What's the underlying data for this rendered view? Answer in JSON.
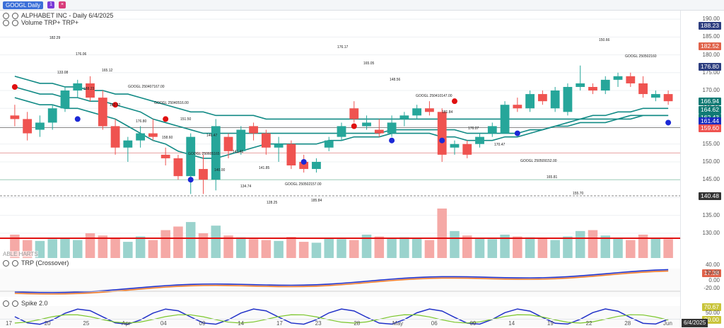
{
  "window": {
    "symbol_tab": "GOOGL Daily",
    "title": "ALPHABET INC - Daily 6/4/2025",
    "volume_label": "Volume  TRP+ TRP+",
    "watermark": "ABLE HARTS",
    "trp_label": "TRP (Crossover)",
    "spike_label": "Spike 2.0"
  },
  "colors": {
    "up": "#26a69a",
    "down": "#ef5350",
    "ma": "#118a85",
    "blue_dot": "#1b28d6",
    "red_dot": "#e01010",
    "magenta": "#e81ce8",
    "green_line": "#1f8c1f"
  },
  "price_scale": {
    "labels": [
      "190.00",
      "185.00",
      "180.00",
      "175.00",
      "170.00",
      "165.00",
      "160.00",
      "155.00",
      "150.00",
      "145.00",
      "140.00",
      "135.00",
      "130.00"
    ],
    "tags": [
      {
        "text": "188.23",
        "color": "#2d3e80"
      },
      {
        "text": "182.52",
        "color": "#e0624a"
      },
      {
        "text": "176.80",
        "color": "#2d3e80"
      },
      {
        "text": "166.94",
        "color": "#0f7a74"
      },
      {
        "text": "164.62",
        "color": "#0f7a74"
      },
      {
        "text": "162.43",
        "color": "#0f7a74"
      },
      {
        "text": "161.44",
        "color": "#1a2cc0"
      },
      {
        "text": "159.60",
        "color": "#ef5350"
      },
      {
        "text": "140.48",
        "color": "#333333"
      }
    ]
  },
  "trp_scale": {
    "labels": [
      "40.00",
      "20.00",
      "0.00",
      "-20.00"
    ],
    "tag": "17.38"
  },
  "spike_scale": {
    "labels": [
      "50.00"
    ],
    "tags": [
      "70.67",
      "20.00"
    ]
  },
  "x_axis": {
    "labels": [
      "17",
      "20",
      "25",
      "Apr",
      "04",
      "09",
      "14",
      "17",
      "23",
      "28",
      "May",
      "06",
      "09",
      "14",
      "19",
      "22",
      "28",
      "Jun"
    ],
    "current_date": "6/4/2025"
  },
  "annotations": [
    "182.29",
    "176.06",
    "165.12",
    "GOOGL 250407167.00",
    "GOOGL 25040516.00",
    "151.50",
    "146.47",
    "141.46",
    "141.85",
    "GOOGL 250502157.00",
    "185.84",
    "176.17",
    "165.05",
    "148.56",
    "GOOGL 250410147.00",
    "181.84",
    "176.07",
    "170.47",
    "GOOGL 250509152.00",
    "165.81",
    "155.70",
    "150.66",
    "GOOGL 250502160",
    "133.08",
    "188.23",
    "182.52",
    "176.80",
    "158.60",
    "GOOGL 250605165",
    "140.00",
    "134.74",
    "128.25"
  ],
  "chart_data": {
    "type": "candlestick",
    "ohlc": [
      {
        "o": 163,
        "h": 166,
        "l": 160,
        "c": 162
      },
      {
        "o": 162,
        "h": 164,
        "l": 156,
        "c": 158
      },
      {
        "o": 159,
        "h": 163,
        "l": 157,
        "c": 161
      },
      {
        "o": 161,
        "h": 166,
        "l": 159,
        "c": 165
      },
      {
        "o": 165,
        "h": 171,
        "l": 164,
        "c": 170
      },
      {
        "o": 170,
        "h": 173,
        "l": 168,
        "c": 172
      },
      {
        "o": 172,
        "h": 174,
        "l": 167,
        "c": 168
      },
      {
        "o": 168,
        "h": 170,
        "l": 159,
        "c": 160
      },
      {
        "o": 160,
        "h": 162,
        "l": 152,
        "c": 154
      },
      {
        "o": 154,
        "h": 157,
        "l": 150,
        "c": 156
      },
      {
        "o": 156,
        "h": 160,
        "l": 154,
        "c": 158
      },
      {
        "o": 158,
        "h": 162,
        "l": 156,
        "c": 157
      },
      {
        "o": 152,
        "h": 154,
        "l": 149,
        "c": 151
      },
      {
        "o": 151,
        "h": 152,
        "l": 145,
        "c": 146
      },
      {
        "o": 146,
        "h": 158,
        "l": 141,
        "c": 157
      },
      {
        "o": 148,
        "h": 152,
        "l": 141,
        "c": 145
      },
      {
        "o": 145,
        "h": 162,
        "l": 142,
        "c": 160
      },
      {
        "o": 157,
        "h": 158,
        "l": 151,
        "c": 153
      },
      {
        "o": 153,
        "h": 160,
        "l": 152,
        "c": 159
      },
      {
        "o": 160,
        "h": 161,
        "l": 156,
        "c": 158
      },
      {
        "o": 158,
        "h": 159,
        "l": 152,
        "c": 154
      },
      {
        "o": 154,
        "h": 157,
        "l": 150,
        "c": 155
      },
      {
        "o": 155,
        "h": 156,
        "l": 148,
        "c": 149
      },
      {
        "o": 150,
        "h": 152,
        "l": 147,
        "c": 148
      },
      {
        "o": 148,
        "h": 151,
        "l": 147,
        "c": 150
      },
      {
        "o": 154,
        "h": 157,
        "l": 153,
        "c": 156
      },
      {
        "o": 157,
        "h": 161,
        "l": 156,
        "c": 160
      },
      {
        "o": 165,
        "h": 167,
        "l": 161,
        "c": 162
      },
      {
        "o": 160,
        "h": 163,
        "l": 159,
        "c": 161
      },
      {
        "o": 159,
        "h": 162,
        "l": 157,
        "c": 158
      },
      {
        "o": 158,
        "h": 163,
        "l": 157,
        "c": 161
      },
      {
        "o": 162,
        "h": 164,
        "l": 160,
        "c": 163
      },
      {
        "o": 163,
        "h": 166,
        "l": 162,
        "c": 165
      },
      {
        "o": 165,
        "h": 167,
        "l": 163,
        "c": 164
      },
      {
        "o": 164,
        "h": 165,
        "l": 150,
        "c": 152
      },
      {
        "o": 154,
        "h": 156,
        "l": 152,
        "c": 155
      },
      {
        "o": 155,
        "h": 156,
        "l": 151,
        "c": 152
      },
      {
        "o": 155,
        "h": 158,
        "l": 154,
        "c": 157
      },
      {
        "o": 158,
        "h": 161,
        "l": 157,
        "c": 160
      },
      {
        "o": 158,
        "h": 167,
        "l": 158,
        "c": 166
      },
      {
        "o": 166,
        "h": 168,
        "l": 164,
        "c": 165
      },
      {
        "o": 165,
        "h": 170,
        "l": 164,
        "c": 169
      },
      {
        "o": 169,
        "h": 170,
        "l": 166,
        "c": 167
      },
      {
        "o": 165,
        "h": 171,
        "l": 164,
        "c": 170
      },
      {
        "o": 164,
        "h": 172,
        "l": 163,
        "c": 171
      },
      {
        "o": 171,
        "h": 177,
        "l": 170,
        "c": 172
      },
      {
        "o": 171,
        "h": 172,
        "l": 169,
        "c": 170
      },
      {
        "o": 170,
        "h": 174,
        "l": 169,
        "c": 173
      },
      {
        "o": 173,
        "h": 175,
        "l": 171,
        "c": 174
      },
      {
        "o": 174,
        "h": 175,
        "l": 171,
        "c": 172
      },
      {
        "o": 172,
        "h": 174,
        "l": 168,
        "c": 169
      },
      {
        "o": 168,
        "h": 170,
        "l": 167,
        "c": 169
      },
      {
        "o": 169,
        "h": 170,
        "l": 166,
        "c": 167
      }
    ],
    "volume": [
      52,
      40,
      38,
      42,
      45,
      40,
      55,
      50,
      44,
      36,
      48,
      40,
      62,
      70,
      80,
      55,
      72,
      50,
      46,
      42,
      40,
      38,
      47,
      36,
      34,
      44,
      42,
      40,
      52,
      48,
      44,
      46,
      44,
      40,
      110,
      60,
      50,
      44,
      42,
      52,
      48,
      46,
      44,
      40,
      48,
      60,
      62,
      50,
      44,
      40,
      52,
      44,
      42
    ],
    "ma": [
      {
        "name": "MA1",
        "values": [
          168,
          167,
          166,
          166,
          165,
          165,
          164,
          163,
          162,
          160,
          158,
          156,
          155,
          153,
          152,
          151,
          151,
          152,
          153,
          154,
          155,
          155,
          155,
          155,
          155,
          156,
          156,
          157,
          157,
          157,
          158,
          158,
          158,
          158,
          157,
          157,
          156,
          156,
          156,
          157,
          157,
          158,
          159,
          160,
          161,
          162,
          163,
          163,
          164,
          164,
          165,
          165,
          165
        ]
      },
      {
        "name": "MA2",
        "values": [
          171,
          170,
          169,
          169,
          168,
          168,
          167,
          167,
          166,
          165,
          164,
          162,
          161,
          160,
          159,
          158,
          158,
          158,
          158,
          158,
          158,
          158,
          158,
          158,
          158,
          158,
          158,
          158,
          158,
          158,
          159,
          159,
          159,
          159,
          159,
          159,
          158,
          158,
          158,
          158,
          158,
          159,
          159,
          160,
          160,
          161,
          161,
          161,
          162,
          162,
          163,
          163,
          163
        ]
      },
      {
        "name": "MA3",
        "values": [
          174,
          173,
          172,
          172,
          171,
          171,
          170,
          170,
          169,
          169,
          168,
          167,
          166,
          165,
          164,
          164,
          163,
          163,
          163,
          163,
          162,
          162,
          162,
          162,
          162,
          162,
          162,
          162,
          162,
          162,
          162,
          162,
          162,
          162,
          162,
          162,
          162,
          162,
          162,
          162,
          162,
          162,
          162,
          162,
          162,
          162,
          162,
          162,
          162,
          163,
          163,
          163,
          163
        ]
      }
    ],
    "blue_dots": [
      {
        "i": 5,
        "v": 162
      },
      {
        "i": 14,
        "v": 145
      },
      {
        "i": 23,
        "v": 150
      },
      {
        "i": 30,
        "v": 156
      },
      {
        "i": 34,
        "v": 156
      },
      {
        "i": 40,
        "v": 158
      },
      {
        "i": 52,
        "v": 161
      }
    ],
    "red_dots": [
      {
        "i": 0,
        "v": 171
      },
      {
        "i": 8,
        "v": 166
      },
      {
        "i": 12,
        "v": 162
      },
      {
        "i": 27,
        "v": 160
      },
      {
        "i": 35,
        "v": 167
      }
    ],
    "ylim": [
      128,
      192
    ]
  }
}
